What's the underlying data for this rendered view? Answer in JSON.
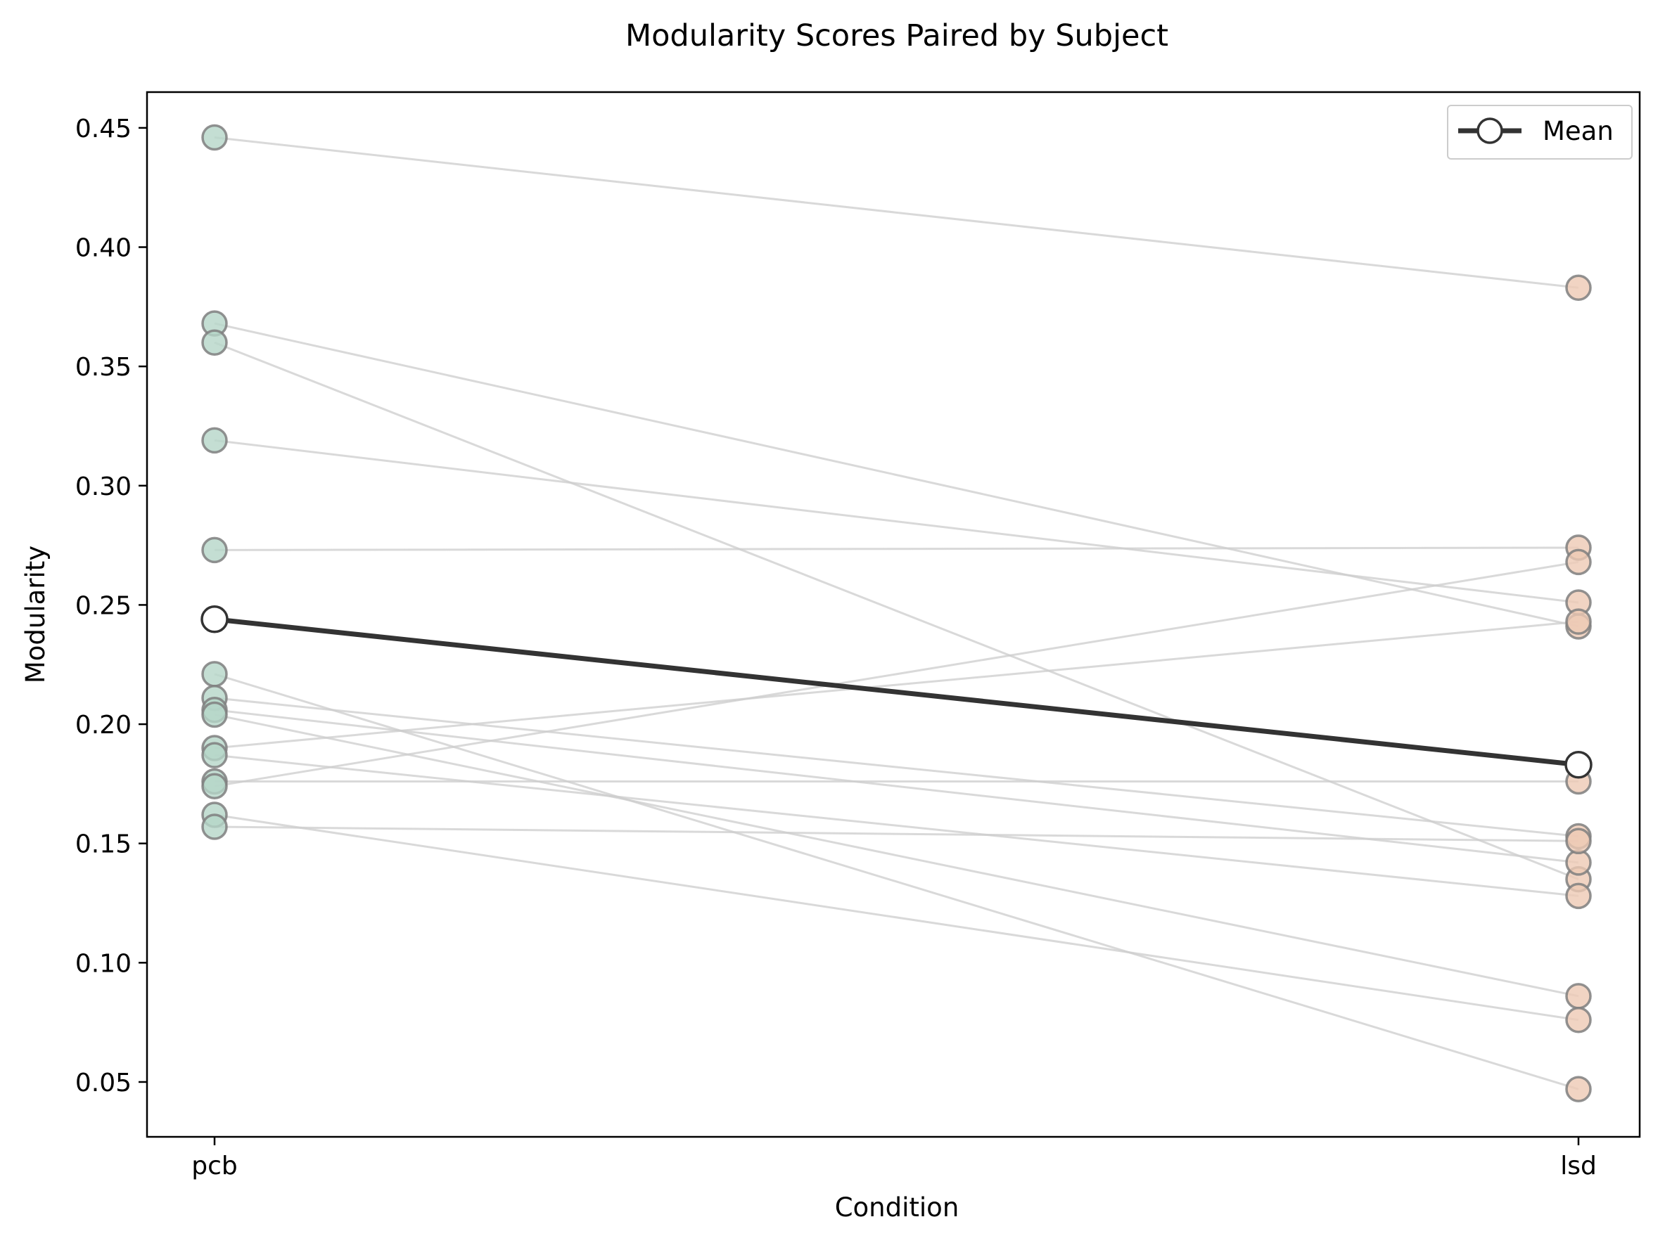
{
  "chart_data": {
    "type": "line",
    "title": "Modularity Scores Paired by Subject",
    "xlabel": "Condition",
    "ylabel": "Modularity",
    "categories": [
      "pcb",
      "lsd"
    ],
    "ylim": [
      0.027,
      0.465
    ],
    "yticks": [
      0.05,
      0.1,
      0.15,
      0.2,
      0.25,
      0.3,
      0.35,
      0.4,
      0.45
    ],
    "ytick_labels": [
      "0.05",
      "0.10",
      "0.15",
      "0.20",
      "0.25",
      "0.30",
      "0.35",
      "0.40",
      "0.45"
    ],
    "grid": false,
    "legend_position": "top-right",
    "colors": {
      "pcb_marker": "#b5d6c8",
      "lsd_marker": "#edc9b4",
      "marker_edge": "#7f7f7f",
      "paired_line": "#cccccc",
      "mean_line": "#333333"
    },
    "subjects": [
      {
        "pcb": 0.446,
        "lsd": 0.383
      },
      {
        "pcb": 0.368,
        "lsd": 0.241
      },
      {
        "pcb": 0.36,
        "lsd": 0.135
      },
      {
        "pcb": 0.319,
        "lsd": 0.251
      },
      {
        "pcb": 0.273,
        "lsd": 0.274
      },
      {
        "pcb": 0.221,
        "lsd": 0.047
      },
      {
        "pcb": 0.211,
        "lsd": 0.153
      },
      {
        "pcb": 0.206,
        "lsd": 0.142
      },
      {
        "pcb": 0.204,
        "lsd": 0.086
      },
      {
        "pcb": 0.19,
        "lsd": 0.243
      },
      {
        "pcb": 0.187,
        "lsd": 0.128
      },
      {
        "pcb": 0.176,
        "lsd": 0.176
      },
      {
        "pcb": 0.174,
        "lsd": 0.268
      },
      {
        "pcb": 0.162,
        "lsd": 0.076
      },
      {
        "pcb": 0.157,
        "lsd": 0.151
      }
    ],
    "series": [
      {
        "name": "Mean",
        "values": [
          0.244,
          0.183
        ]
      }
    ]
  }
}
